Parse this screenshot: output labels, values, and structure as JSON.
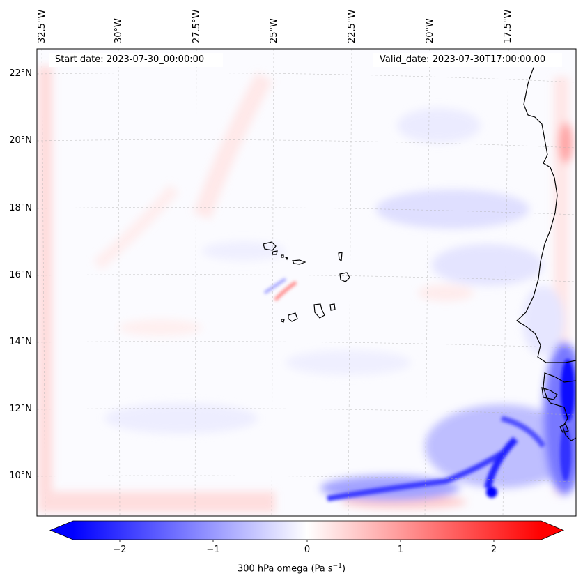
{
  "map": {
    "start_date": "Start date: 2023-07-30_00:00:00",
    "valid_date": "Valid_date: 2023-07-30T17:00:00.00",
    "lon_labels": [
      "32.5°W",
      "30°W",
      "27.5°W",
      "25°W",
      "22.5°W",
      "20°W",
      "17.5°W"
    ],
    "lat_labels": [
      "22°N",
      "20°N",
      "18°N",
      "16°N",
      "14°N",
      "12°N",
      "10°N"
    ],
    "background_color": "#fbfbff",
    "coastline_color": "#000000"
  },
  "colorbar": {
    "label": "300 hPa omega (Pa s",
    "label_unit_sup": "−1",
    "label_tail": ")",
    "ticks": [
      "−2",
      "−1",
      "0",
      "1",
      "2"
    ],
    "colormap": "bwr",
    "min": -2.5,
    "max": 2.5,
    "neg_color": "#0000ff",
    "pos_color": "#ff0000"
  }
}
